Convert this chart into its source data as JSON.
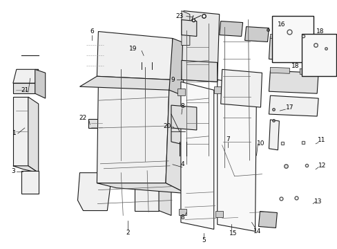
{
  "bg_color": "#ffffff",
  "line_color": "#1a1a1a",
  "fill_light": "#f0f0f0",
  "fill_mid": "#e0e0e0",
  "fill_dark": "#cccccc",
  "figsize": [
    4.89,
    3.6
  ],
  "dpi": 100
}
